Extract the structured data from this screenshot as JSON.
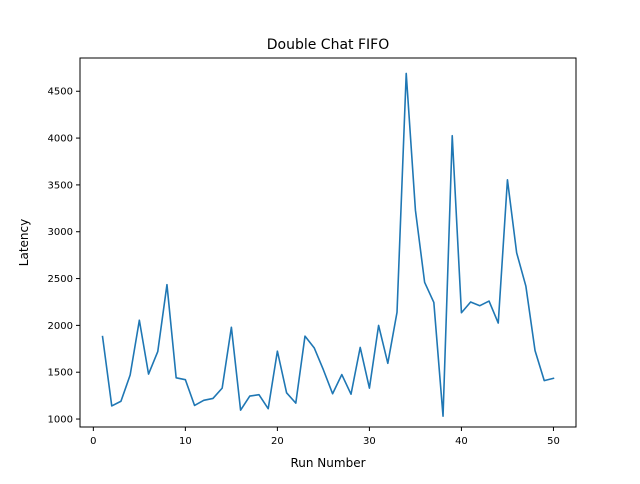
{
  "chart_data": {
    "type": "line",
    "title": "Double Chat FIFO",
    "xlabel": "Run Number",
    "ylabel": "Latency",
    "xlim": [
      -1.45,
      52.45
    ],
    "ylim": [
      915,
      4855
    ],
    "xticks": [
      0,
      10,
      20,
      30,
      40,
      50
    ],
    "yticks": [
      1000,
      1500,
      2000,
      2500,
      3000,
      3500,
      4000,
      4500
    ],
    "grid": false,
    "legend": "none",
    "series": [
      {
        "color": "#1f77b4",
        "x": [
          1,
          2,
          3,
          4,
          5,
          6,
          7,
          8,
          9,
          10,
          11,
          12,
          13,
          14,
          15,
          16,
          17,
          18,
          19,
          20,
          21,
          22,
          23,
          24,
          25,
          26,
          27,
          28,
          29,
          30,
          31,
          32,
          33,
          34,
          35,
          36,
          37,
          38,
          39,
          40,
          41,
          42,
          43,
          44,
          45,
          46,
          47,
          48,
          49,
          50
        ],
        "y": [
          1880,
          1140,
          1190,
          1470,
          2055,
          1480,
          1720,
          2435,
          1440,
          1420,
          1145,
          1200,
          1220,
          1330,
          1980,
          1095,
          1245,
          1260,
          1110,
          1725,
          1280,
          1170,
          1885,
          1760,
          1525,
          1270,
          1475,
          1265,
          1765,
          1330,
          2000,
          1595,
          2140,
          4690,
          3230,
          2460,
          2245,
          1030,
          4025,
          2135,
          2250,
          2210,
          2260,
          2025,
          3555,
          2775,
          2420,
          1730,
          1410,
          1435
        ]
      }
    ]
  }
}
